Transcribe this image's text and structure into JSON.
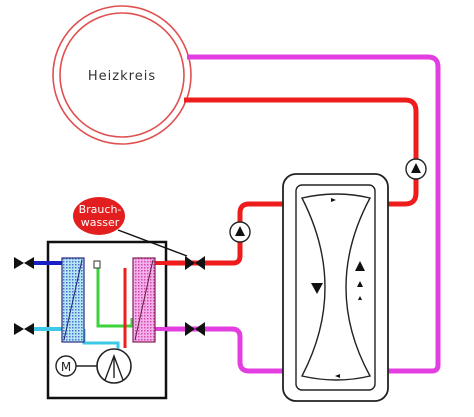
{
  "labels": {
    "heating_circuit": "Heizkreis",
    "hot_water_line1": "Brauch-",
    "hot_water_line2": "wasser",
    "motor": "M"
  },
  "colors": {
    "supply_red": "#ee1c1c",
    "return_magenta": "#e33ee0",
    "circle_red": "#e05050",
    "cold_blue": "#1a20c8",
    "cyan": "#3cc8e6",
    "green": "#3cd23c",
    "badge_red": "#e21e1e"
  }
}
